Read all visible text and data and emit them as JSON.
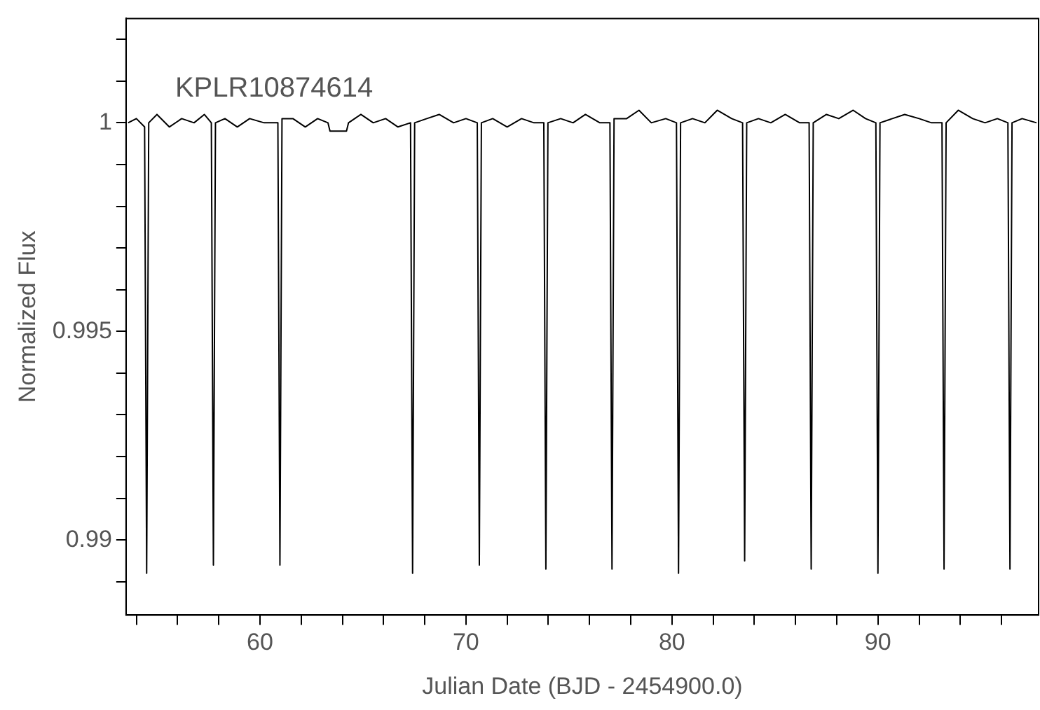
{
  "chart_data": {
    "type": "line",
    "xlabel": "Julian Date (BJD - 2454900.0)",
    "ylabel": "Normalized Flux",
    "annotations": [
      "KPLR10874614"
    ],
    "xlim": [
      53.5,
      97.8
    ],
    "xticks": [
      {
        "value": 54,
        "label": null
      },
      {
        "value": 56,
        "label": null
      },
      {
        "value": 58,
        "label": null
      },
      60,
      {
        "value": 62,
        "label": null
      },
      {
        "value": 64,
        "label": null
      },
      {
        "value": 66,
        "label": null
      },
      {
        "value": 68,
        "label": null
      },
      70,
      {
        "value": 72,
        "label": null
      },
      {
        "value": 74,
        "label": null
      },
      {
        "value": 76,
        "label": null
      },
      {
        "value": 78,
        "label": null
      },
      80,
      {
        "value": 82,
        "label": null
      },
      {
        "value": 84,
        "label": null
      },
      {
        "value": 86,
        "label": null
      },
      {
        "value": 88,
        "label": null
      },
      90,
      {
        "value": 92,
        "label": null
      },
      {
        "value": 94,
        "label": null
      },
      {
        "value": 96,
        "label": null
      }
    ],
    "ylim": [
      0.9882,
      1.0025
    ],
    "yticks": [
      {
        "value": 0.989,
        "label": null
      },
      0.99,
      {
        "value": 0.991,
        "label": null
      },
      {
        "value": 0.992,
        "label": null
      },
      {
        "value": 0.993,
        "label": null
      },
      {
        "value": 0.994,
        "label": null
      },
      0.995,
      {
        "value": 0.996,
        "label": null
      },
      {
        "value": 0.997,
        "label": null
      },
      {
        "value": 0.998,
        "label": null
      },
      {
        "value": 0.999,
        "label": null
      },
      1,
      {
        "value": 1.001,
        "label": null
      },
      {
        "value": 1.002,
        "label": null
      }
    ],
    "marker": "none",
    "line_style": "solid",
    "legend": false,
    "grid": false,
    "series": [
      {
        "color": "#000000",
        "x": [
          53.6,
          54.0,
          54.4,
          54.5,
          54.6,
          55.0,
          55.6,
          56.2,
          56.8,
          57.3,
          57.64,
          57.74,
          57.84,
          58.3,
          58.9,
          59.5,
          60.2,
          60.87,
          60.97,
          61.07,
          61.6,
          62.2,
          62.8,
          63.3,
          63.4,
          64.2,
          64.3,
          64.9,
          65.5,
          66.1,
          66.7,
          67.31,
          67.41,
          67.51,
          68.1,
          68.7,
          69.4,
          70.0,
          70.55,
          70.65,
          70.75,
          71.3,
          72.0,
          72.7,
          73.3,
          73.78,
          73.88,
          73.98,
          74.6,
          75.2,
          75.8,
          76.5,
          76.99,
          77.09,
          77.19,
          77.8,
          78.4,
          79.0,
          79.7,
          80.22,
          80.32,
          80.42,
          81.0,
          81.6,
          82.2,
          82.9,
          83.43,
          83.53,
          83.63,
          84.2,
          84.8,
          85.5,
          86.2,
          86.66,
          86.76,
          86.86,
          87.5,
          88.1,
          88.8,
          89.4,
          89.9,
          90.0,
          90.1,
          90.7,
          91.3,
          92.0,
          92.6,
          93.11,
          93.21,
          93.31,
          93.9,
          94.6,
          95.2,
          95.8,
          96.31,
          96.41,
          96.51,
          97.0,
          97.7
        ],
        "values": [
          1.0,
          1.0001,
          0.9999,
          0.9892,
          1.0,
          1.0002,
          0.9999,
          1.0001,
          1.0,
          1.0002,
          1.0,
          0.9894,
          1.0,
          1.0001,
          0.9999,
          1.0001,
          1.0,
          1.0,
          0.9894,
          1.0001,
          1.0001,
          0.9999,
          1.0001,
          1.0,
          0.9998,
          0.9998,
          1.0,
          1.0002,
          1.0,
          1.0001,
          0.9999,
          1.0,
          0.9892,
          1.0,
          1.0001,
          1.0002,
          1.0,
          1.0001,
          1.0,
          0.9894,
          1.0,
          1.0001,
          0.9999,
          1.0001,
          1.0,
          1.0,
          0.9893,
          1.0,
          1.0001,
          1.0,
          1.0002,
          1.0,
          1.0,
          0.9893,
          1.0001,
          1.0001,
          1.0003,
          1.0,
          1.0001,
          1.0,
          0.9892,
          1.0,
          1.0001,
          1.0,
          1.0003,
          1.0001,
          1.0,
          0.9895,
          1.0,
          1.0001,
          1.0,
          1.0002,
          1.0,
          1.0,
          0.9893,
          1.0,
          1.0002,
          1.0001,
          1.0003,
          1.0001,
          1.0,
          0.9892,
          1.0,
          1.0001,
          1.0002,
          1.0001,
          1.0,
          1.0,
          0.9893,
          1.0,
          1.0003,
          1.0001,
          1.0,
          1.0001,
          1.0,
          0.9893,
          1.0,
          1.0001,
          1.0
        ]
      }
    ]
  }
}
